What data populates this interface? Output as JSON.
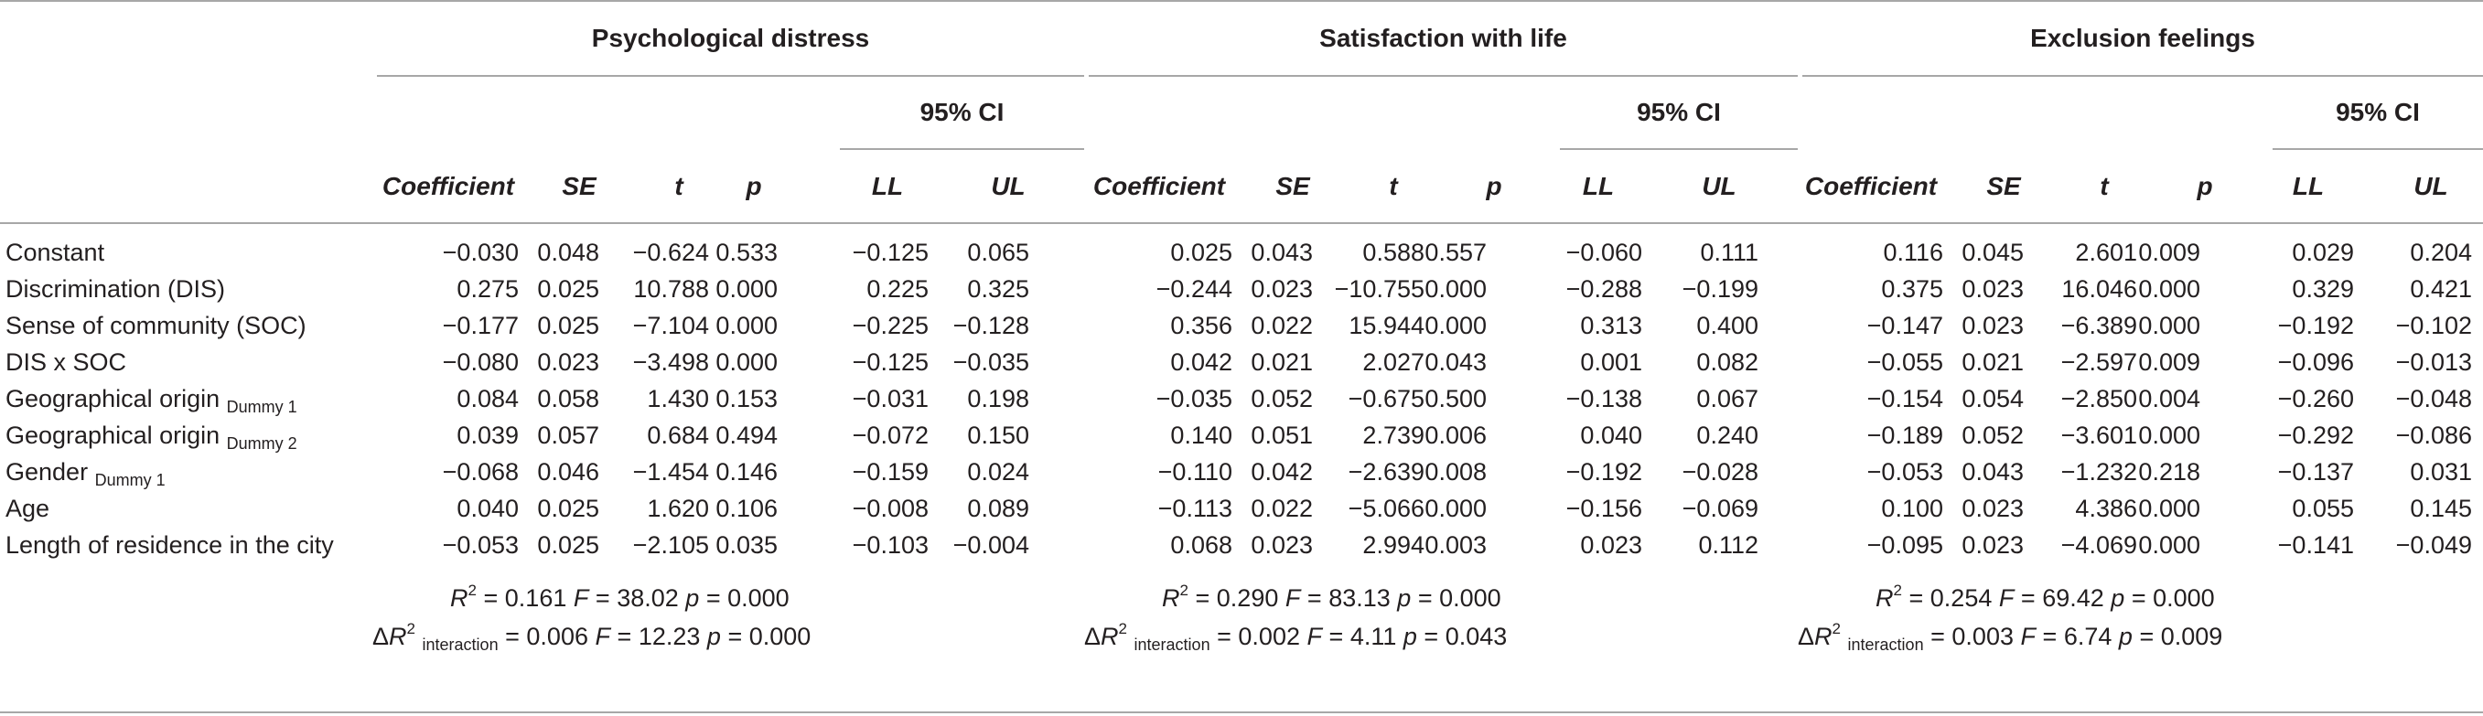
{
  "groups": [
    {
      "title": "Psychological distress",
      "ci_label": "95% CI",
      "r2": "0.161",
      "f": "38.02",
      "p": "0.000",
      "dr2": "0.006",
      "df": "12.23",
      "dp": "0.000"
    },
    {
      "title": "Satisfaction with life",
      "ci_label": "95% CI",
      "r2": "0.290",
      "f": "83.13",
      "p": "0.000",
      "dr2": "0.002",
      "df": "4.11",
      "dp": "0.043"
    },
    {
      "title": "Exclusion feelings",
      "ci_label": "95% CI",
      "r2": "0.254",
      "f": "69.42",
      "p": "0.000",
      "dr2": "0.003",
      "df": "6.74",
      "dp": "0.009"
    }
  ],
  "columns": [
    "Coefficient",
    "SE",
    "t",
    "p",
    "LL",
    "UL"
  ],
  "stat_labels": {
    "r": "R",
    "sq": "2",
    "eq": "=",
    "f": "F",
    "p": "p",
    "delta": "Δ",
    "interaction": "interaction"
  },
  "rows": [
    {
      "label": "Constant",
      "sub": "",
      "values": [
        "−0.030",
        "0.048",
        "−0.624",
        "0.533",
        "−0.125",
        "0.065",
        "0.025",
        "0.043",
        "0.588",
        "0.557",
        "−0.060",
        "0.111",
        "0.116",
        "0.045",
        "2.601",
        "0.009",
        "0.029",
        "0.204"
      ]
    },
    {
      "label": "Discrimination (DIS)",
      "sub": "",
      "values": [
        "0.275",
        "0.025",
        "10.788",
        "0.000",
        "0.225",
        "0.325",
        "−0.244",
        "0.023",
        "−10.755",
        "0.000",
        "−0.288",
        "−0.199",
        "0.375",
        "0.023",
        "16.046",
        "0.000",
        "0.329",
        "0.421"
      ]
    },
    {
      "label": "Sense of community (SOC)",
      "sub": "",
      "values": [
        "−0.177",
        "0.025",
        "−7.104",
        "0.000",
        "−0.225",
        "−0.128",
        "0.356",
        "0.022",
        "15.944",
        "0.000",
        "0.313",
        "0.400",
        "−0.147",
        "0.023",
        "−6.389",
        "0.000",
        "−0.192",
        "−0.102"
      ]
    },
    {
      "label": "DIS x SOC",
      "sub": "",
      "values": [
        "−0.080",
        "0.023",
        "−3.498",
        "0.000",
        "−0.125",
        "−0.035",
        "0.042",
        "0.021",
        "2.027",
        "0.043",
        "0.001",
        "0.082",
        "−0.055",
        "0.021",
        "−2.597",
        "0.009",
        "−0.096",
        "−0.013"
      ]
    },
    {
      "label": "Geographical origin",
      "sub": "Dummy 1",
      "values": [
        "0.084",
        "0.058",
        "1.430",
        "0.153",
        "−0.031",
        "0.198",
        "−0.035",
        "0.052",
        "−0.675",
        "0.500",
        "−0.138",
        "0.067",
        "−0.154",
        "0.054",
        "−2.850",
        "0.004",
        "−0.260",
        "−0.048"
      ]
    },
    {
      "label": "Geographical origin",
      "sub": "Dummy 2",
      "values": [
        "0.039",
        "0.057",
        "0.684",
        "0.494",
        "−0.072",
        "0.150",
        "0.140",
        "0.051",
        "2.739",
        "0.006",
        "0.040",
        "0.240",
        "−0.189",
        "0.052",
        "−3.601",
        "0.000",
        "−0.292",
        "−0.086"
      ]
    },
    {
      "label": "Gender",
      "sub": "Dummy 1",
      "values": [
        "−0.068",
        "0.046",
        "−1.454",
        "0.146",
        "−0.159",
        "0.024",
        "−0.110",
        "0.042",
        "−2.639",
        "0.008",
        "−0.192",
        "−0.028",
        "−0.053",
        "0.043",
        "−1.232",
        "0.218",
        "−0.137",
        "0.031"
      ]
    },
    {
      "label": "Age",
      "sub": "",
      "values": [
        "0.040",
        "0.025",
        "1.620",
        "0.106",
        "−0.008",
        "0.089",
        "−0.113",
        "0.022",
        "−5.066",
        "0.000",
        "−0.156",
        "−0.069",
        "0.100",
        "0.023",
        "4.386",
        "0.000",
        "0.055",
        "0.145"
      ]
    },
    {
      "label": "Length of residence in the city",
      "sub": "",
      "values": [
        "−0.053",
        "0.025",
        "−2.105",
        "0.035",
        "−0.103",
        "−0.004",
        "0.068",
        "0.023",
        "2.994",
        "0.003",
        "0.023",
        "0.112",
        "−0.095",
        "0.023",
        "−4.069",
        "0.000",
        "−0.141",
        "−0.049"
      ]
    }
  ]
}
